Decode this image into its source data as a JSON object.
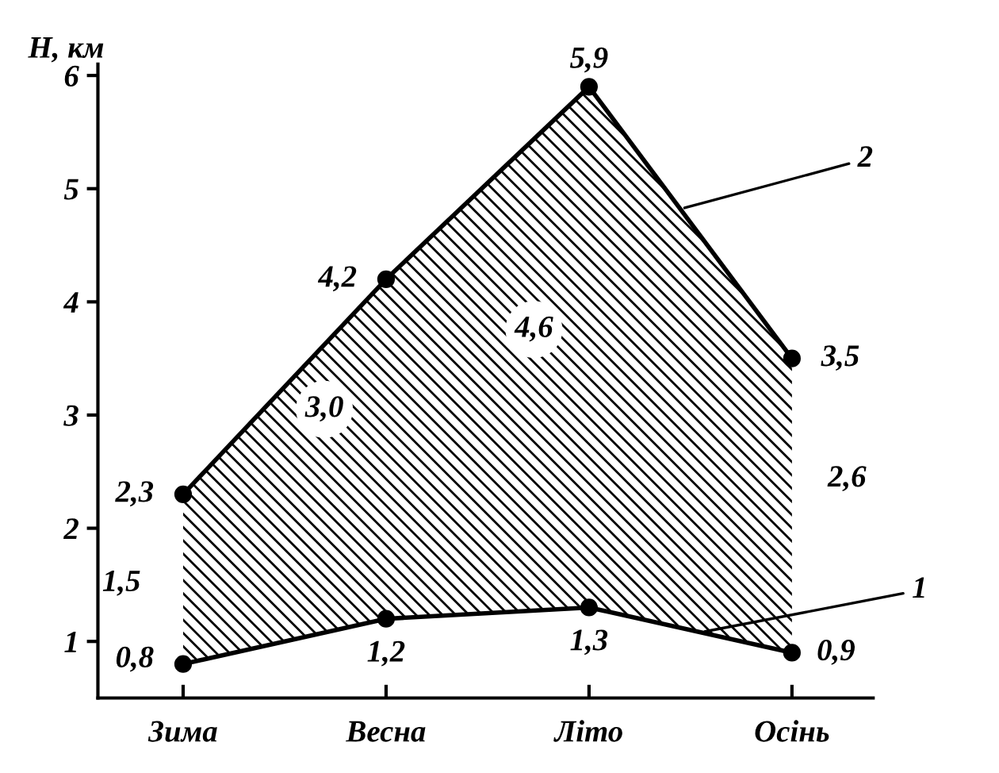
{
  "chart_data": {
    "type": "line",
    "ylabel": "H, км",
    "categories": [
      "Зима",
      "Весна",
      "Літо",
      "Осінь"
    ],
    "series": [
      {
        "name": "1",
        "color": "#000000",
        "values": [
          0.8,
          1.2,
          1.3,
          0.9
        ],
        "value_labels": [
          "0,8",
          "1,2",
          "1,3",
          "0,9"
        ]
      },
      {
        "name": "2",
        "color": "#000000",
        "values": [
          2.3,
          4.2,
          5.9,
          3.5
        ],
        "value_labels": [
          "2,3",
          "4,2",
          "5,9",
          "3,5"
        ],
        "lower": [
          0.8,
          1.2,
          1.3,
          0.9
        ],
        "upper": [
          2.3,
          4.2,
          5.9,
          3.5
        ]
      }
    ],
    "annotations": [
      "1,5",
      "3,0",
      "4,6",
      "2,6"
    ],
    "ylim": [
      0.5,
      6.1
    ],
    "yticks": [
      1,
      2,
      3,
      4,
      5,
      6
    ],
    "marker": "circle",
    "line_style": "solid",
    "grid": false,
    "legend": false
  }
}
